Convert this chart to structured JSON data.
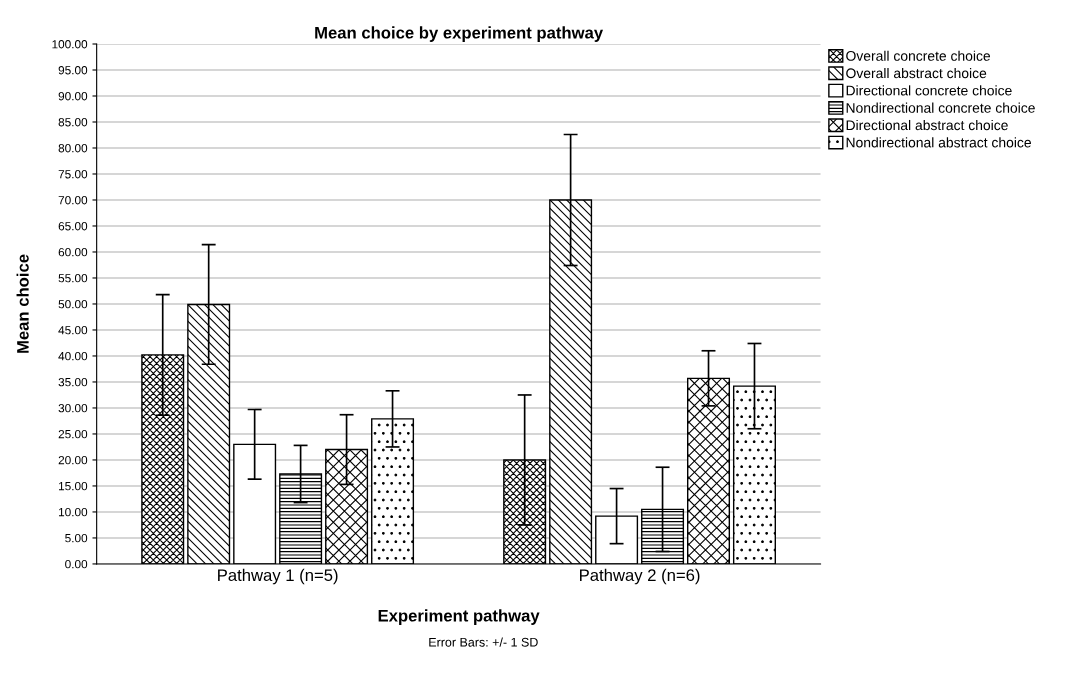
{
  "chart_data": {
    "type": "bar",
    "title": "Mean choice by experiment pathway",
    "xlabel": "Experiment pathway",
    "ylabel": "Mean choice",
    "categories": [
      "Pathway 1 (n=5)",
      "Pathway 2 (n=6)"
    ],
    "series": [
      {
        "name": "Overall concrete choice",
        "color": "#000000",
        "values": [
          40.2,
          20.0
        ],
        "errors": [
          11.6,
          12.5
        ]
      },
      {
        "name": "Overall abstract choice",
        "color": "#000000",
        "values": [
          49.9,
          70.0
        ],
        "errors": [
          11.5,
          12.6
        ]
      },
      {
        "name": "Directional concrete choice",
        "color": "#ffffff",
        "values": [
          23.0,
          9.2
        ],
        "errors": [
          6.7,
          5.3
        ]
      },
      {
        "name": "Nondirectional concrete choice",
        "color": "#000000",
        "values": [
          17.3,
          10.5
        ],
        "errors": [
          5.5,
          8.1
        ]
      },
      {
        "name": "Directional abstract choice",
        "color": "#000000",
        "values": [
          22.0,
          35.7
        ],
        "errors": [
          6.7,
          5.3
        ]
      },
      {
        "name": "Nondirectional abstract choice",
        "color": "#000000",
        "values": [
          27.9,
          34.2
        ],
        "errors": [
          5.4,
          8.2
        ]
      }
    ],
    "ylim": [
      0,
      100
    ],
    "yticks": [
      {
        "value": 0,
        "label": "0.00"
      },
      {
        "value": 5,
        "label": "5.00"
      },
      {
        "value": 10,
        "label": "10.00"
      },
      {
        "value": 15,
        "label": "15.00"
      },
      {
        "value": 20,
        "label": "20.00"
      },
      {
        "value": 25,
        "label": "25.00"
      },
      {
        "value": 30,
        "label": "30.00"
      },
      {
        "value": 35,
        "label": "35.00"
      },
      {
        "value": 40,
        "label": "40.00"
      },
      {
        "value": 45,
        "label": "45.00"
      },
      {
        "value": 50,
        "label": "50.00"
      },
      {
        "value": 55,
        "label": "55.00"
      },
      {
        "value": 60,
        "label": "60.00"
      },
      {
        "value": 65,
        "label": "65.00"
      },
      {
        "value": 70,
        "label": "70.00"
      },
      {
        "value": 75,
        "label": "75.00"
      },
      {
        "value": 80,
        "label": "80.00"
      },
      {
        "value": 85,
        "label": "85.00"
      },
      {
        "value": 90,
        "label": "90.00"
      },
      {
        "value": 95,
        "label": "95.00"
      },
      {
        "value": 100,
        "label": "100.00"
      }
    ],
    "grid": "y",
    "legend": "top right",
    "annotations": [
      "Error Bars: +/- 1 SD"
    ]
  }
}
